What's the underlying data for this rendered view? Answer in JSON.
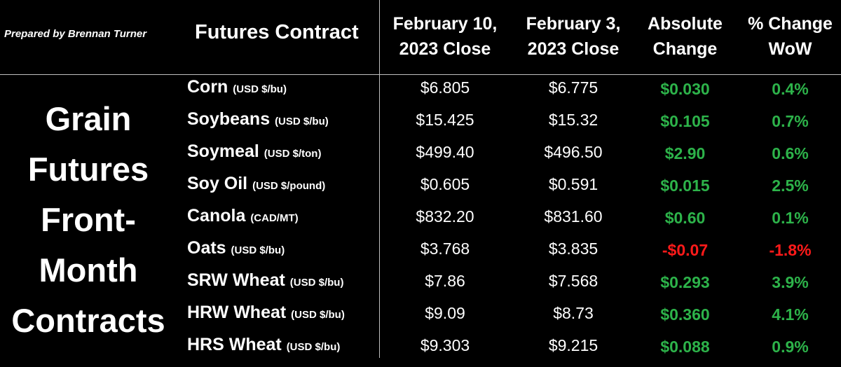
{
  "prepared_by": "Prepared by Brennan Turner",
  "header": {
    "contract": "Futures Contract",
    "col1": "February 10,\n2023 Close",
    "col2": "February 3,\n2023 Close",
    "col3": "Absolute\nChange",
    "col4": "% Change\nWoW"
  },
  "side_label": [
    "Grain",
    "Futures",
    "Front-",
    "Month",
    "Contracts"
  ],
  "colors": {
    "positive": "#2db34a",
    "negative": "#ff1a1a"
  },
  "rows": [
    {
      "name": "Corn",
      "unit": "(USD $/bu)",
      "feb10": "$6.805",
      "feb3": "$6.775",
      "abs": "$0.030",
      "pct": "0.4%",
      "dir": "up"
    },
    {
      "name": "Soybeans",
      "unit": "(USD $/bu)",
      "feb10": "$15.425",
      "feb3": "$15.32",
      "abs": "$0.105",
      "pct": "0.7%",
      "dir": "up"
    },
    {
      "name": "Soymeal",
      "unit": "(USD $/ton)",
      "feb10": "$499.40",
      "feb3": "$496.50",
      "abs": "$2.90",
      "pct": "0.6%",
      "dir": "up"
    },
    {
      "name": "Soy Oil",
      "unit": "(USD $/pound)",
      "feb10": "$0.605",
      "feb3": "$0.591",
      "abs": "$0.015",
      "pct": "2.5%",
      "dir": "up"
    },
    {
      "name": "Canola",
      "unit": "(CAD/MT)",
      "feb10": "$832.20",
      "feb3": "$831.60",
      "abs": "$0.60",
      "pct": "0.1%",
      "dir": "up"
    },
    {
      "name": "Oats",
      "unit": "(USD $/bu)",
      "feb10": "$3.768",
      "feb3": "$3.835",
      "abs": "-$0.07",
      "pct": "-1.8%",
      "dir": "down"
    },
    {
      "name": "SRW Wheat",
      "unit": "(USD $/bu)",
      "feb10": "$7.86",
      "feb3": "$7.568",
      "abs": "$0.293",
      "pct": "3.9%",
      "dir": "up"
    },
    {
      "name": "HRW Wheat",
      "unit": "(USD $/bu)",
      "feb10": "$9.09",
      "feb3": "$8.73",
      "abs": "$0.360",
      "pct": "4.1%",
      "dir": "up"
    },
    {
      "name": "HRS Wheat",
      "unit": "(USD $/bu)",
      "feb10": "$9.303",
      "feb3": "$9.215",
      "abs": "$0.088",
      "pct": "0.9%",
      "dir": "up"
    }
  ]
}
